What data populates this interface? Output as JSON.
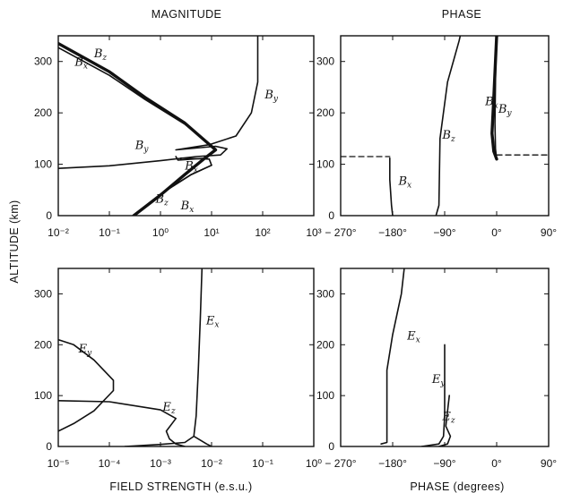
{
  "titles": {
    "magnitude": "MAGNITUDE",
    "phase": "PHASE"
  },
  "axes": {
    "ylabel": "ALTITUDE (km)",
    "xlabel_magnitude": "FIELD STRENGTH (e.s.u.)",
    "xlabel_phase": "PHASE (degrees)"
  },
  "chart_data": [
    {
      "id": "b-magnitude",
      "type": "line",
      "xscale": "log",
      "xlim": [
        0.01,
        1000
      ],
      "ylim": [
        0,
        350
      ],
      "xticks": [
        0.01,
        0.1,
        1,
        10,
        100,
        1000
      ],
      "xticklabels": [
        "10⁻²",
        "10⁻¹",
        "10⁰",
        "10¹",
        "10²",
        "10³"
      ],
      "yticks": [
        0,
        100,
        200,
        300
      ],
      "yticklabels": [
        "0",
        "100",
        "200",
        "300"
      ],
      "series": [
        {
          "name": "Bz",
          "sub": "z",
          "style": "thick",
          "points": [
            [
              0.3,
              0
            ],
            [
              1,
              40
            ],
            [
              3,
              80
            ],
            [
              7,
              110
            ],
            [
              12,
              128
            ],
            [
              3,
              180
            ],
            [
              0.5,
              230
            ],
            [
              0.1,
              280
            ],
            [
              0.01,
              335
            ]
          ],
          "label_at": [
            0.05,
            308
          ]
        },
        {
          "name": "Bz",
          "sub": "z",
          "style": "normal",
          "points": [
            [
              0.3,
              0
            ],
            [
              1,
              40
            ],
            [
              3,
              80
            ],
            [
              7,
              110
            ],
            [
              12,
              128
            ],
            [
              3,
              180
            ],
            [
              0.5,
              230
            ],
            [
              0.1,
              280
            ],
            [
              0.01,
              335
            ]
          ],
          "label_at": [
            0.8,
            25
          ]
        },
        {
          "name": "Bx",
          "sub": "x",
          "style": "normal",
          "points": [
            [
              0.01,
              327
            ],
            [
              0.1,
              273
            ],
            [
              0.5,
              226
            ],
            [
              3,
              178
            ],
            [
              12,
              130
            ],
            [
              8,
              112
            ],
            [
              2.2,
              108
            ],
            [
              2,
              115
            ]
          ],
          "label_at": [
            0.021,
            292
          ]
        },
        {
          "name": "Bx",
          "sub": "x",
          "style": "normal",
          "points": [
            [
              1,
              42
            ],
            [
              4,
              80
            ],
            [
              10,
              98
            ],
            [
              9,
              110
            ],
            [
              2.5,
              112
            ],
            [
              2.5,
              110
            ]
          ],
          "label_at": [
            3.0,
            90
          ]
        },
        {
          "name": "Bx",
          "sub": "x",
          "style": "normal",
          "points": [
            [
              1,
              42
            ],
            [
              4,
              80
            ],
            [
              10,
              98
            ]
          ],
          "label_at": [
            2.5,
            12
          ]
        },
        {
          "name": "By",
          "sub": "y",
          "style": "normal",
          "points": [
            [
              0.01,
              92
            ],
            [
              0.1,
              97
            ],
            [
              1,
              107
            ],
            [
              5,
              115
            ],
            [
              15,
              118
            ],
            [
              20,
              130
            ],
            [
              12,
              135
            ],
            [
              2,
              128
            ],
            [
              9,
              138
            ],
            [
              30,
              155
            ],
            [
              60,
              200
            ],
            [
              80,
              260
            ],
            [
              80,
              350
            ]
          ],
          "label_at": [
            0.32,
            130
          ]
        },
        {
          "name": "By",
          "sub": "y",
          "style": "normal",
          "points": [
            [
              80,
              350
            ]
          ],
          "label_at": [
            110,
            228
          ]
        }
      ]
    },
    {
      "id": "b-phase",
      "type": "line",
      "xlim": [
        -270,
        90
      ],
      "ylim": [
        0,
        350
      ],
      "xticks": [
        -270,
        -180,
        -90,
        0,
        90
      ],
      "xticklabels": [
        "− 270°",
        "−180°",
        "−90°",
        "0°",
        "90°"
      ],
      "yticks": [
        0,
        100,
        200,
        300
      ],
      "yticklabels": [
        "0",
        "100",
        "200",
        "300"
      ],
      "series": [
        {
          "name": "Bx",
          "sub": "x",
          "style": "normal",
          "points": [
            [
              -180,
              0
            ],
            [
              -182,
              20
            ],
            [
              -185,
              70
            ],
            [
              -185,
              112
            ]
          ],
          "label_at": [
            -170,
            60
          ]
        },
        {
          "name": "Bx",
          "sub": "x",
          "style": "dashed",
          "points": [
            [
              -270,
              115
            ],
            [
              -185,
              115
            ]
          ]
        },
        {
          "name": "Bz",
          "sub": "z",
          "style": "normal",
          "points": [
            [
              -105,
              0
            ],
            [
              -100,
              20
            ],
            [
              -98,
              150
            ],
            [
              -85,
              260
            ],
            [
              -65,
              340
            ],
            [
              -63,
              350
            ]
          ],
          "label_at": [
            -94,
            150
          ]
        },
        {
          "name": "Bx",
          "sub": "x",
          "style": "thick",
          "points": [
            [
              0,
              110
            ],
            [
              -5,
              125
            ],
            [
              -8,
              160
            ],
            [
              -5,
              230
            ],
            [
              0,
              350
            ]
          ],
          "label_at": [
            -20,
            215
          ]
        },
        {
          "name": "By",
          "sub": "y",
          "style": "normal",
          "points": [
            [
              0,
              110
            ],
            [
              -2,
              130
            ],
            [
              -3,
              180
            ],
            [
              -2,
              260
            ],
            [
              -1,
              350
            ]
          ],
          "label_at": [
            3,
            200
          ]
        },
        {
          "name": "By",
          "sub": "y",
          "style": "dashed",
          "points": [
            [
              0,
              118
            ],
            [
              90,
              118
            ]
          ]
        }
      ]
    },
    {
      "id": "e-magnitude",
      "type": "line",
      "xscale": "log",
      "xlim": [
        1e-05,
        1
      ],
      "ylim": [
        0,
        350
      ],
      "xticks": [
        1e-05,
        0.0001,
        0.001,
        0.01,
        0.1,
        1
      ],
      "xticklabels": [
        "10⁻⁵",
        "10⁻⁴",
        "10⁻³",
        "10⁻²",
        "10⁻¹",
        "10⁰"
      ],
      "yticks": [
        0,
        100,
        200,
        300
      ],
      "yticklabels": [
        "0",
        "100",
        "200",
        "300"
      ],
      "series": [
        {
          "name": "Ex",
          "sub": "x",
          "style": "normal",
          "points": [
            [
              0.0002,
              0
            ],
            [
              0.001,
              4
            ],
            [
              0.003,
              8
            ],
            [
              0.0045,
              20
            ],
            [
              0.005,
              60
            ],
            [
              0.0055,
              150
            ],
            [
              0.006,
              250
            ],
            [
              0.0065,
              350
            ]
          ],
          "label_at": [
            0.0078,
            240
          ]
        },
        {
          "name": "Ex",
          "sub": "x",
          "style": "normal",
          "points": [
            [
              0.0045,
              20
            ],
            [
              0.008,
              5
            ],
            [
              0.01,
              0
            ]
          ]
        },
        {
          "name": "Ey",
          "sub": "y",
          "style": "normal",
          "points": [
            [
              1e-05,
              210
            ],
            [
              2e-05,
              200
            ],
            [
              5e-05,
              170
            ],
            [
              0.00012,
              130
            ],
            [
              0.00012,
              110
            ],
            [
              5e-05,
              70
            ],
            [
              2e-05,
              45
            ],
            [
              1e-05,
              30
            ]
          ],
          "label_at": [
            2.5e-05,
            185
          ]
        },
        {
          "name": "Ez",
          "sub": "z",
          "style": "normal",
          "points": [
            [
              1e-05,
              90
            ],
            [
              0.0001,
              88
            ],
            [
              0.001,
              72
            ],
            [
              0.002,
              55
            ],
            [
              0.0013,
              30
            ],
            [
              0.0015,
              15
            ],
            [
              0.002,
              5
            ],
            [
              0.003,
              0
            ]
          ],
          "label_at": [
            0.0011,
            70
          ]
        }
      ]
    },
    {
      "id": "e-phase",
      "type": "line",
      "xlim": [
        -270,
        90
      ],
      "ylim": [
        0,
        350
      ],
      "xticks": [
        -270,
        -180,
        -90,
        0,
        90
      ],
      "xticklabels": [
        "− 270°",
        "−180°",
        "−90°",
        "0°",
        "90°"
      ],
      "yticks": [
        0,
        100,
        200,
        300
      ],
      "yticklabels": [
        "0",
        "100",
        "200",
        "300"
      ],
      "series": [
        {
          "name": "Ex",
          "sub": "x",
          "style": "normal",
          "points": [
            [
              -200,
              5
            ],
            [
              -190,
              8
            ],
            [
              -190,
              150
            ],
            [
              -180,
              220
            ],
            [
              -165,
              300
            ],
            [
              -160,
              350
            ]
          ],
          "label_at": [
            -155,
            210
          ]
        },
        {
          "name": "Ey",
          "sub": "y",
          "style": "normal",
          "points": [
            [
              -130,
              0
            ],
            [
              -100,
              5
            ],
            [
              -92,
              20
            ],
            [
              -90,
              60
            ],
            [
              -90,
              200
            ]
          ],
          "label_at": [
            -112,
            125
          ]
        },
        {
          "name": "Ez",
          "sub": "z",
          "style": "normal",
          "points": [
            [
              -100,
              0
            ],
            [
              -85,
              5
            ],
            [
              -80,
              20
            ],
            [
              -88,
              40
            ],
            [
              -86,
              60
            ],
            [
              -82,
              100
            ]
          ],
          "label_at": [
            -94,
            52
          ]
        }
      ]
    }
  ]
}
